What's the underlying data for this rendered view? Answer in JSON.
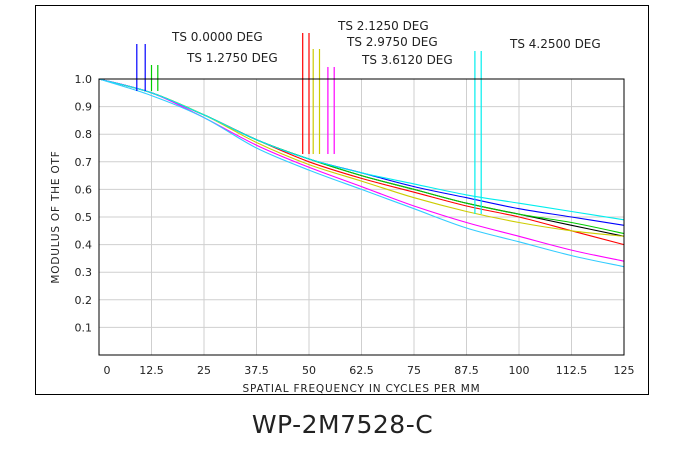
{
  "caption": "WP-2M7528-C",
  "chart_data": {
    "type": "line",
    "xlabel": "SPATIAL FREQUENCY IN CYCLES PER MM",
    "ylabel": "MODULUS OF THE OTF",
    "xlim": [
      0,
      125
    ],
    "ylim": [
      0,
      1.0
    ],
    "x_ticks": [
      "0",
      "12.5",
      "25",
      "37.5",
      "50",
      "62.5",
      "75",
      "87.5",
      "100",
      "112.5",
      "125"
    ],
    "y_ticks": [
      "0.1",
      "0.2",
      "0.3",
      "0.4",
      "0.5",
      "0.6",
      "0.7",
      "0.8",
      "0.9",
      "1.0"
    ],
    "grid": true,
    "x": [
      0,
      12.5,
      25,
      37.5,
      50,
      62.5,
      75,
      87.5,
      100,
      112.5,
      125
    ],
    "series": [
      {
        "color": "#000000",
        "values": [
          1.0,
          0.95,
          0.87,
          0.78,
          0.71,
          0.65,
          0.6,
          0.55,
          0.51,
          0.47,
          0.43
        ]
      },
      {
        "color": "#ff0000",
        "values": [
          1.0,
          0.95,
          0.87,
          0.78,
          0.7,
          0.64,
          0.59,
          0.54,
          0.5,
          0.45,
          0.4
        ]
      },
      {
        "color": "#0000ff",
        "values": [
          1.0,
          0.95,
          0.87,
          0.78,
          0.71,
          0.66,
          0.61,
          0.57,
          0.53,
          0.5,
          0.47
        ]
      },
      {
        "color": "#00cc00",
        "values": [
          1.0,
          0.95,
          0.87,
          0.78,
          0.71,
          0.65,
          0.6,
          0.55,
          0.51,
          0.48,
          0.44
        ]
      },
      {
        "color": "#cccc00",
        "values": [
          1.0,
          0.95,
          0.87,
          0.77,
          0.69,
          0.63,
          0.57,
          0.52,
          0.48,
          0.45,
          0.43
        ]
      },
      {
        "color": "#ff00ff",
        "values": [
          1.0,
          0.95,
          0.86,
          0.76,
          0.68,
          0.61,
          0.54,
          0.48,
          0.43,
          0.38,
          0.34
        ]
      },
      {
        "color": "#00eeee",
        "values": [
          1.0,
          0.95,
          0.87,
          0.78,
          0.71,
          0.66,
          0.62,
          0.58,
          0.55,
          0.52,
          0.49
        ]
      },
      {
        "color": "#33ccff",
        "values": [
          1.0,
          0.94,
          0.86,
          0.75,
          0.67,
          0.6,
          0.53,
          0.46,
          0.41,
          0.36,
          0.32
        ]
      }
    ],
    "field_markers": [
      {
        "label": "TS  0.0000 DEG",
        "colors": [
          "#0000ff",
          "#0000ff"
        ],
        "x": [
          9,
          11
        ]
      },
      {
        "label": "TS  1.2750 DEG",
        "colors": [
          "#00cc00",
          "#00cc00"
        ],
        "x": [
          12.5,
          14
        ]
      },
      {
        "label": "TS 2.1250 DEG",
        "colors": [
          "#ff0000",
          "#ff0000"
        ],
        "x": [
          48.5,
          50
        ]
      },
      {
        "label": "TS 2.9750 DEG",
        "colors": [
          "#cccc00",
          "#cccc00"
        ],
        "x": [
          51,
          52.5
        ]
      },
      {
        "label": "TS 3.6120 DEG",
        "colors": [
          "#ff00ff",
          "#ff00ff"
        ],
        "x": [
          54.5,
          56
        ]
      },
      {
        "label": "TS 4.2500 DEG",
        "colors": [
          "#00eeee",
          "#00eeee"
        ],
        "x": [
          89.5,
          91
        ]
      }
    ]
  }
}
